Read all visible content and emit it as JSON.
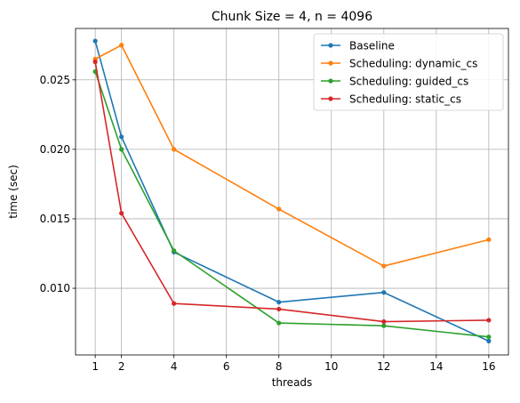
{
  "chart_data": {
    "type": "line",
    "title": "Chunk Size = 4, n = 4096",
    "xlabel": "threads",
    "ylabel": "time (sec)",
    "x": [
      1,
      2,
      4,
      8,
      12,
      16
    ],
    "xticks": [
      1,
      2,
      4,
      6,
      8,
      10,
      12,
      14,
      16
    ],
    "yticks": [
      0.01,
      0.015,
      0.02,
      0.025
    ],
    "ytick_labels": [
      "0.010",
      "0.015",
      "0.020",
      "0.025"
    ],
    "xlim": [
      0.25,
      16.75
    ],
    "ylim": [
      0.0052,
      0.0287
    ],
    "grid": true,
    "legend_position": "top-right",
    "series": [
      {
        "name": "Baseline",
        "color": "#1f77b4",
        "values": [
          0.0278,
          0.0209,
          0.0126,
          0.009,
          0.0097,
          0.0062
        ]
      },
      {
        "name": "Scheduling: dynamic_cs",
        "color": "#ff7f0e",
        "values": [
          0.0265,
          0.0275,
          0.02,
          0.0157,
          0.0116,
          0.0135
        ]
      },
      {
        "name": "Scheduling: guided_cs",
        "color": "#2ca02c",
        "values": [
          0.0256,
          0.02,
          0.0127,
          0.0075,
          0.0073,
          0.0065
        ]
      },
      {
        "name": "Scheduling: static_cs",
        "color": "#d62728",
        "values": [
          0.0263,
          0.0154,
          0.0089,
          0.0085,
          0.0076,
          0.0077
        ]
      }
    ]
  }
}
